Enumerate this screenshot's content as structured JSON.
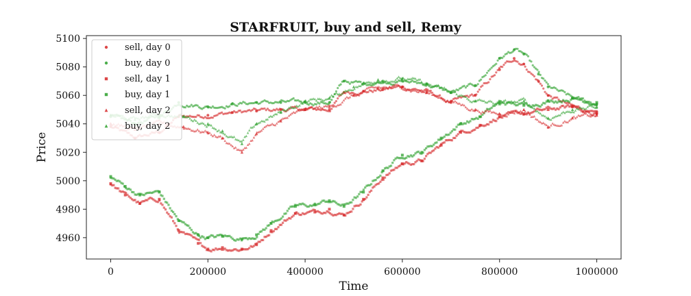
{
  "chart_data": {
    "type": "scatter",
    "title": "STARFRUIT, buy and sell, Remy",
    "xlabel": "Time",
    "ylabel": "Price",
    "xlim": [
      -50000,
      1050000
    ],
    "ylim": [
      4945,
      5102
    ],
    "xticks": [
      0,
      200000,
      400000,
      600000,
      800000,
      1000000
    ],
    "xtick_labels": [
      "0",
      "200000",
      "400000",
      "600000",
      "800000",
      "1000000"
    ],
    "yticks": [
      4960,
      4980,
      5000,
      5020,
      5040,
      5060,
      5080,
      5100
    ],
    "ytick_labels": [
      "4960",
      "4980",
      "5000",
      "5020",
      "5040",
      "5060",
      "5080",
      "5100"
    ],
    "grid": false,
    "legend_position": "top-left",
    "series": [
      {
        "name": "sell, day 0",
        "color": "#d62728",
        "marker": "circle",
        "x": [
          0,
          50000,
          100000,
          140000,
          200000,
          250000,
          300000,
          350000,
          400000,
          450000,
          480000,
          520000,
          560000,
          600000,
          650000,
          700000,
          750000,
          800000,
          830000,
          850000,
          880000,
          900000,
          950000,
          1000000
        ],
        "y": [
          5038,
          5030,
          5034,
          5045,
          5046,
          5048,
          5049,
          5050,
          5050,
          5050,
          5062,
          5063,
          5064,
          5066,
          5063,
          5055,
          5060,
          5078,
          5086,
          5082,
          5070,
          5060,
          5052,
          5047
        ]
      },
      {
        "name": "buy, day 0",
        "color": "#2ca02c",
        "marker": "circle",
        "x": [
          0,
          50000,
          100000,
          140000,
          200000,
          250000,
          300000,
          350000,
          400000,
          450000,
          480000,
          520000,
          560000,
          600000,
          650000,
          700000,
          750000,
          800000,
          830000,
          850000,
          880000,
          900000,
          950000,
          1000000
        ],
        "y": [
          5045,
          5040,
          5045,
          5055,
          5052,
          5054,
          5055,
          5055,
          5055,
          5055,
          5070,
          5068,
          5070,
          5070,
          5068,
          5062,
          5067,
          5086,
          5092,
          5089,
          5075,
          5066,
          5058,
          5054
        ]
      },
      {
        "name": "sell, day 1",
        "color": "#d62728",
        "marker": "square",
        "x": [
          0,
          30000,
          60000,
          100000,
          140000,
          180000,
          200000,
          230000,
          270000,
          300000,
          330000,
          380000,
          420000,
          450000,
          480000,
          520000,
          560000,
          600000,
          640000,
          680000,
          720000,
          760000,
          800000,
          850000,
          900000,
          950000,
          1000000
        ],
        "y": [
          4998,
          4990,
          4984,
          4987,
          4965,
          4956,
          4952,
          4953,
          4952,
          4955,
          4965,
          4977,
          4978,
          4980,
          4976,
          4987,
          5002,
          5012,
          5014,
          5025,
          5034,
          5039,
          5045,
          5047,
          5050,
          5052,
          5048
        ]
      },
      {
        "name": "buy, day 1",
        "color": "#2ca02c",
        "marker": "square",
        "x": [
          0,
          30000,
          60000,
          100000,
          140000,
          180000,
          200000,
          230000,
          270000,
          300000,
          330000,
          380000,
          420000,
          450000,
          480000,
          520000,
          560000,
          600000,
          640000,
          680000,
          720000,
          760000,
          800000,
          850000,
          900000,
          950000,
          1000000
        ],
        "y": [
          5003,
          4996,
          4990,
          4992,
          4972,
          4962,
          4960,
          4961,
          4959,
          4962,
          4970,
          4982,
          4983,
          4986,
          4982,
          4992,
          5007,
          5018,
          5020,
          5030,
          5040,
          5045,
          5055,
          5053,
          5056,
          5058,
          5055
        ]
      },
      {
        "name": "sell, day 2",
        "color": "#d62728",
        "marker": "triangle",
        "x": [
          0,
          50000,
          100000,
          150000,
          200000,
          230000,
          270000,
          300000,
          350000,
          400000,
          450000,
          500000,
          550000,
          600000,
          650000,
          700000,
          750000,
          800000,
          850000,
          900000,
          950000,
          1000000
        ],
        "y": [
          5040,
          5036,
          5040,
          5038,
          5034,
          5030,
          5020,
          5033,
          5042,
          5050,
          5052,
          5060,
          5065,
          5066,
          5062,
          5056,
          5050,
          5047,
          5050,
          5038,
          5044,
          5046
        ]
      },
      {
        "name": "buy, day 2",
        "color": "#2ca02c",
        "marker": "triangle",
        "x": [
          0,
          50000,
          100000,
          150000,
          200000,
          230000,
          270000,
          300000,
          350000,
          400000,
          450000,
          500000,
          550000,
          600000,
          650000,
          700000,
          750000,
          800000,
          850000,
          900000,
          950000,
          1000000
        ],
        "y": [
          5046,
          5043,
          5047,
          5045,
          5040,
          5035,
          5026,
          5040,
          5048,
          5056,
          5058,
          5066,
          5071,
          5072,
          5068,
          5062,
          5056,
          5054,
          5056,
          5044,
          5050,
          5052
        ]
      }
    ]
  }
}
